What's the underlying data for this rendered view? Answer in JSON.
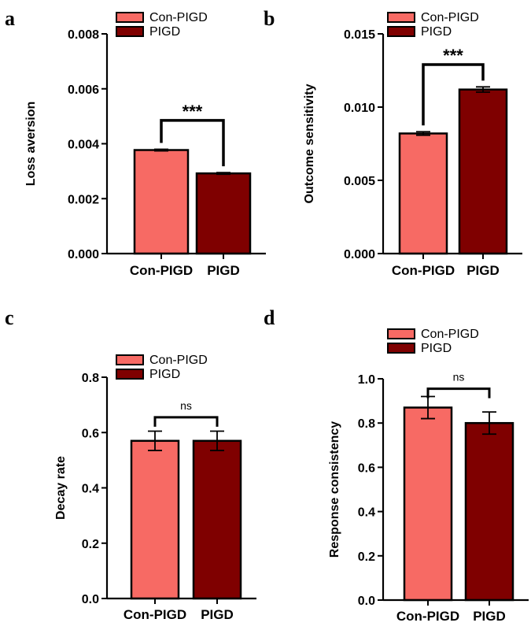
{
  "chart_data": [
    {
      "panel": "a",
      "type": "bar",
      "categories": [
        "Con-PIGD",
        "PIGD"
      ],
      "values": [
        0.00377,
        0.00292
      ],
      "errors": [
        3e-05,
        3e-05
      ],
      "ylabel": "Loss aversion",
      "xlabel": "",
      "ylim": [
        0,
        0.008
      ],
      "yticks": [
        0.0,
        0.002,
        0.004,
        0.006,
        0.008
      ],
      "tick_labels": [
        "0.000",
        "0.002",
        "0.004",
        "0.006",
        "0.008"
      ],
      "legend": [
        "Con-PIGD",
        "PIGD"
      ],
      "legend_position": "top-center",
      "significance": "***",
      "bracket_y": 0.00485,
      "colors": [
        "#f76a64",
        "#7f0000"
      ]
    },
    {
      "panel": "b",
      "type": "bar",
      "categories": [
        "Con-PIGD",
        "PIGD"
      ],
      "values": [
        0.0082,
        0.0112
      ],
      "errors": [
        0.00012,
        0.00018
      ],
      "ylabel": "Outcome sensitivity",
      "xlabel": "",
      "ylim": [
        0,
        0.015
      ],
      "yticks": [
        0.0,
        0.005,
        0.01,
        0.015
      ],
      "tick_labels": [
        "0.000",
        "0.005",
        "0.010",
        "0.015"
      ],
      "legend": [
        "Con-PIGD",
        "PIGD"
      ],
      "legend_position": "top-center",
      "significance": "***",
      "bracket_y": 0.0129,
      "colors": [
        "#f76a64",
        "#7f0000"
      ]
    },
    {
      "panel": "c",
      "type": "bar",
      "categories": [
        "Con-PIGD",
        "PIGD"
      ],
      "values": [
        0.57,
        0.57
      ],
      "errors": [
        0.035,
        0.035
      ],
      "ylabel": "Decay rate",
      "xlabel": "",
      "ylim": [
        0,
        0.8
      ],
      "yticks": [
        0.0,
        0.2,
        0.4,
        0.6,
        0.8
      ],
      "tick_labels": [
        "0.0",
        "0.2",
        "0.4",
        "0.6",
        "0.8"
      ],
      "legend": [
        "Con-PIGD",
        "PIGD"
      ],
      "legend_position": "top-center",
      "significance": "ns",
      "bracket_y": 0.655,
      "colors": [
        "#f76a64",
        "#7f0000"
      ]
    },
    {
      "panel": "d",
      "type": "bar",
      "categories": [
        "Con-PIGD",
        "PIGD"
      ],
      "values": [
        0.87,
        0.8
      ],
      "errors": [
        0.05,
        0.05
      ],
      "ylabel": "Response consistency",
      "xlabel": "",
      "ylim": [
        0,
        1.0
      ],
      "yticks": [
        0.0,
        0.2,
        0.4,
        0.6,
        0.8,
        1.0
      ],
      "tick_labels": [
        "0.0",
        "0.2",
        "0.4",
        "0.6",
        "0.8",
        "1.0"
      ],
      "legend": [
        "Con-PIGD",
        "PIGD"
      ],
      "legend_position": "top-center",
      "significance": "ns",
      "bracket_y": 0.955,
      "colors": [
        "#f76a64",
        "#7f0000"
      ]
    }
  ]
}
